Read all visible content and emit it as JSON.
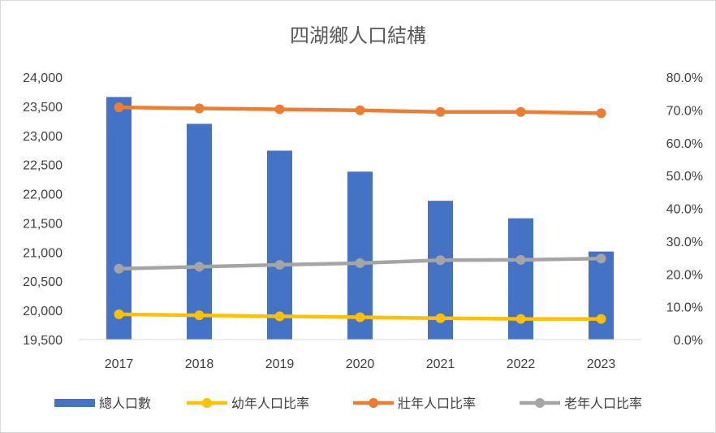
{
  "chart_data": {
    "type": "bar",
    "title": "四湖鄉人口結構",
    "categories": [
      "2017",
      "2018",
      "2019",
      "2020",
      "2021",
      "2022",
      "2023"
    ],
    "series": [
      {
        "name": "總人口數",
        "kind": "bar",
        "axis": "left",
        "color": "#4472C4",
        "values": [
          23660,
          23200,
          22740,
          22380,
          21880,
          21580,
          21010
        ]
      },
      {
        "name": "幼年人口比率",
        "kind": "line",
        "axis": "right",
        "color": "#FFC000",
        "values": [
          7.7,
          7.4,
          7.1,
          6.8,
          6.5,
          6.3,
          6.3
        ]
      },
      {
        "name": "壯年人口比率",
        "kind": "line",
        "axis": "right",
        "color": "#ED7D31",
        "values": [
          70.8,
          70.5,
          70.2,
          69.9,
          69.4,
          69.4,
          69.0
        ]
      },
      {
        "name": "老年人口比率",
        "kind": "line",
        "axis": "right",
        "color": "#A5A5A5",
        "values": [
          21.6,
          22.2,
          22.8,
          23.3,
          24.2,
          24.3,
          24.7
        ]
      }
    ],
    "y_left": {
      "min": 19500,
      "max": 24000,
      "step": 500,
      "tick_labels": [
        "19,500",
        "20,000",
        "20,500",
        "21,000",
        "21,500",
        "22,000",
        "22,500",
        "23,000",
        "23,500",
        "24,000"
      ]
    },
    "y_right": {
      "min": 0,
      "max": 80,
      "step": 10,
      "tick_labels": [
        "0.0%",
        "10.0%",
        "20.0%",
        "30.0%",
        "40.0%",
        "50.0%",
        "60.0%",
        "70.0%",
        "80.0%"
      ]
    },
    "grid": false,
    "legend": "bottom"
  }
}
